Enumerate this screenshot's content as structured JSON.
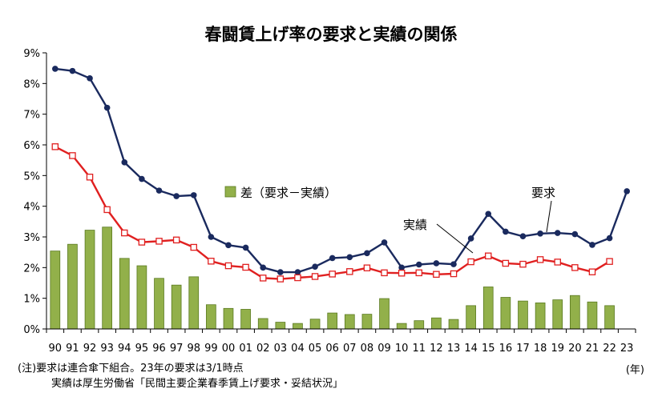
{
  "chart_data": {
    "type": "bar+line",
    "title": "春闘賃上げ率の要求と実績の関係",
    "categories": [
      "90",
      "91",
      "92",
      "93",
      "94",
      "95",
      "96",
      "97",
      "98",
      "99",
      "00",
      "01",
      "02",
      "03",
      "04",
      "05",
      "06",
      "07",
      "08",
      "09",
      "10",
      "11",
      "12",
      "13",
      "14",
      "15",
      "16",
      "17",
      "18",
      "19",
      "20",
      "21",
      "22",
      "23"
    ],
    "y_ticks": [
      "0%",
      "1%",
      "2%",
      "3%",
      "4%",
      "5%",
      "6%",
      "7%",
      "8%",
      "9%"
    ],
    "ylim": [
      0,
      9
    ],
    "grid": false,
    "series": [
      {
        "name": "要求",
        "kind": "line",
        "color": "#1a2a5e",
        "values": [
          8.48,
          8.41,
          8.17,
          7.21,
          5.43,
          4.89,
          4.51,
          4.33,
          4.36,
          3.0,
          2.73,
          2.65,
          2.0,
          1.85,
          1.85,
          2.03,
          2.31,
          2.34,
          2.47,
          2.82,
          2.0,
          2.1,
          2.14,
          2.11,
          2.95,
          3.75,
          3.17,
          3.02,
          3.11,
          3.13,
          3.09,
          2.74,
          2.96,
          4.49
        ]
      },
      {
        "name": "実績",
        "kind": "line",
        "color": "#e02020",
        "values": [
          5.94,
          5.65,
          4.95,
          3.89,
          3.13,
          2.83,
          2.86,
          2.9,
          2.66,
          2.21,
          2.06,
          2.01,
          1.66,
          1.63,
          1.67,
          1.71,
          1.79,
          1.87,
          1.99,
          1.83,
          1.82,
          1.83,
          1.78,
          1.8,
          2.19,
          2.38,
          2.14,
          2.11,
          2.26,
          2.18,
          2.0,
          1.86,
          2.2,
          null
        ]
      },
      {
        "name": "差（要求－実績）",
        "kind": "bar",
        "color": "#92b04a",
        "values": [
          2.54,
          2.76,
          3.22,
          3.32,
          2.3,
          2.06,
          1.65,
          1.43,
          1.7,
          0.79,
          0.67,
          0.64,
          0.34,
          0.22,
          0.18,
          0.32,
          0.52,
          0.47,
          0.48,
          0.99,
          0.18,
          0.27,
          0.36,
          0.31,
          0.76,
          1.37,
          1.03,
          0.91,
          0.85,
          0.95,
          1.09,
          0.88,
          0.76,
          null
        ]
      }
    ],
    "annotations": {
      "yokyu_label": "要求",
      "jisseki_label": "実績",
      "legend_label": "差（要求－実績）"
    }
  },
  "notes": {
    "line1": "(注)要求は連合傘下組合。23年の要求は3/1時点",
    "line2": "実績は厚生労働省「民間主要企業春季賃上げ要求・妥結状況」",
    "unit": "(年)"
  }
}
